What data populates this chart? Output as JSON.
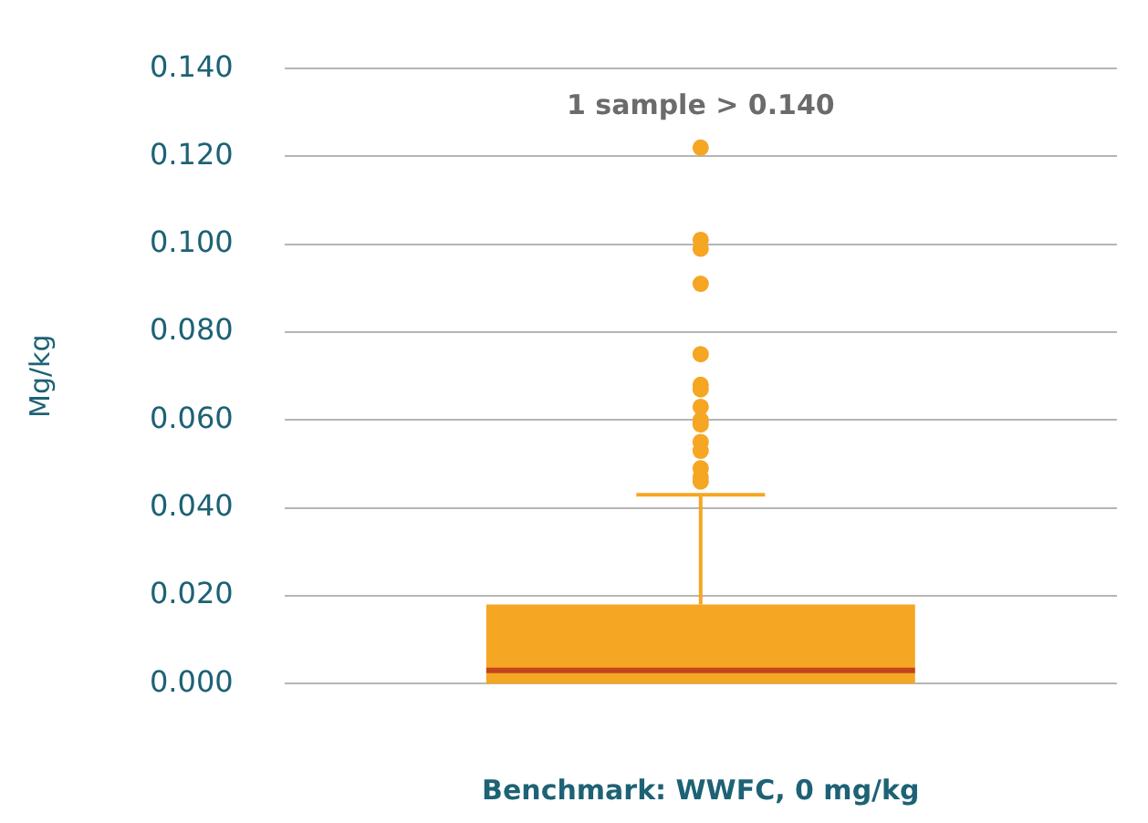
{
  "chart_data": {
    "type": "box",
    "xlabel": "Benchmark: WWFC, 0 mg/kg",
    "ylabel": "Mg/kg",
    "categories": [
      null
    ],
    "boxes": [
      {
        "low": 0.0,
        "q1": 0.0,
        "median": 0.003,
        "q3": 0.018,
        "high": 0.043,
        "outliers": [
          0.122,
          0.101,
          0.099,
          0.091,
          0.075,
          0.068,
          0.067,
          0.063,
          0.06,
          0.059,
          0.055,
          0.053,
          0.049,
          0.047,
          0.046
        ]
      }
    ],
    "color": "#f5a623",
    "ylim": [
      0,
      0.14
    ],
    "yticks": [
      {
        "value": 0,
        "label": "0.000"
      },
      {
        "value": 0.02,
        "label": "0.020"
      },
      {
        "value": 0.04,
        "label": "0.040"
      },
      {
        "value": 0.06,
        "label": "0.060"
      },
      {
        "value": 0.08,
        "label": "0.080"
      },
      {
        "value": 0.1,
        "label": "0.100"
      },
      {
        "value": 0.12,
        "label": "0.120"
      },
      {
        "value": 0.14,
        "label": "0.140"
      }
    ],
    "annotations": [
      "1 sample > 0.140"
    ],
    "grid": "y",
    "legend": false
  }
}
